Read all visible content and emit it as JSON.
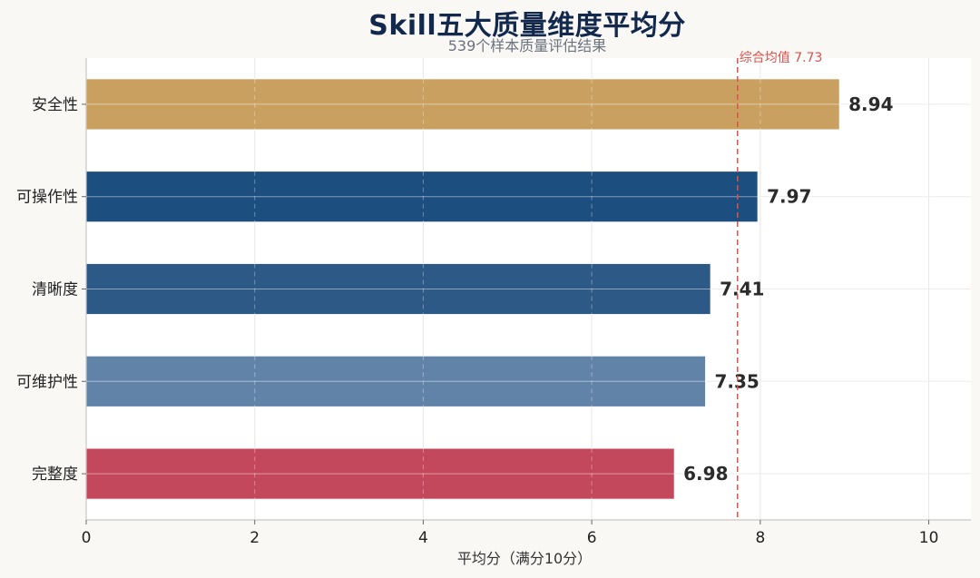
{
  "chart_data": {
    "type": "bar",
    "orientation": "horizontal",
    "title": "Skill五大质量维度平均分",
    "subtitle": "539个样本质量评估结果",
    "xlabel": "平均分（满分10分）",
    "ylabel": "",
    "xlim": [
      0,
      10.5
    ],
    "xticks": [
      "0",
      "2",
      "4",
      "6",
      "8",
      "10"
    ],
    "categories": [
      "安全性",
      "可操作性",
      "清晰度",
      "可维护性",
      "完整度"
    ],
    "values": [
      8.94,
      7.97,
      7.41,
      7.35,
      6.98
    ],
    "value_labels": [
      "8.94",
      "7.97",
      "7.41",
      "7.35",
      "6.98"
    ],
    "bar_colors": [
      "#c9a060",
      "#1c4e80",
      "#2c5986",
      "#6283a8",
      "#c4485b"
    ],
    "reference_line": {
      "value": 7.73,
      "label": "综合均值 7.73",
      "color": "#d9534f",
      "style": "dashed"
    },
    "grid": true,
    "legend": "none"
  }
}
